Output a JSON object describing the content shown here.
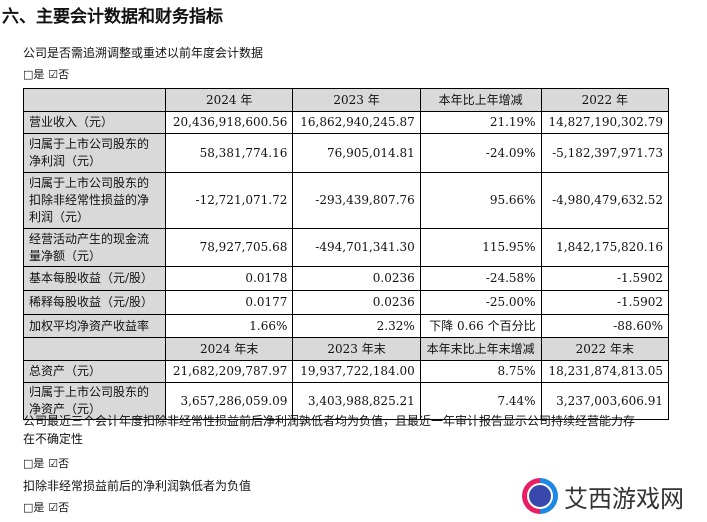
{
  "title": "六、主要会计数据和财务指标",
  "q1": "公司是否需追溯调整或重述以前年度会计数据",
  "yes": "□是",
  "no": "☑否",
  "header1": [
    "",
    "2024 年",
    "2023 年",
    "本年比上年增减",
    "2022 年"
  ],
  "rows1": [
    [
      "营业收入（元）",
      "20,436,918,600.56",
      "16,862,940,245.87",
      "21.19%",
      "14,827,190,302.79"
    ],
    [
      "归属于上市公司股东的净利润（元）",
      "58,381,774.16",
      "76,905,014.81",
      "-24.09%",
      "-5,182,397,971.73"
    ],
    [
      "归属于上市公司股东的扣除非经常性损益的净利润（元）",
      "-12,721,071.72",
      "-293,439,807.76",
      "95.66%",
      "-4,980,479,632.52"
    ],
    [
      "经营活动产生的现金流量净额（元）",
      "78,927,705.68",
      "-494,701,341.30",
      "115.95%",
      "1,842,175,820.16"
    ],
    [
      "基本每股收益（元/股）",
      "0.0178",
      "0.0236",
      "-24.58%",
      "-1.5902"
    ],
    [
      "稀释每股收益（元/股）",
      "0.0177",
      "0.0236",
      "-25.00%",
      "-1.5902"
    ],
    [
      "加权平均净资产收益率",
      "1.66%",
      "2.32%",
      "下降 0.66 个百分比",
      "-88.60%"
    ]
  ],
  "header2": [
    "",
    "2024 年末",
    "2023 年末",
    "本年末比上年末增减",
    "2022 年末"
  ],
  "rows2": [
    [
      "总资产（元）",
      "21,682,209,787.97",
      "19,937,722,184.00",
      "8.75%",
      "18,231,874,813.05"
    ],
    [
      "归属于上市公司股东的净资产（元）",
      "3,657,286,059.09",
      "3,403,988,825.21",
      "7.44%",
      "3,237,003,606.91"
    ]
  ],
  "q2": "公司最近三个会计年度扣除非经常性损益前后净利润孰低者均为负值，且最近一年审计报告显示公司持续经营能力存在不确定性",
  "q3": "扣除非经常损益前后的净利润孰低者为负值",
  "watermark": "艾西游戏网"
}
